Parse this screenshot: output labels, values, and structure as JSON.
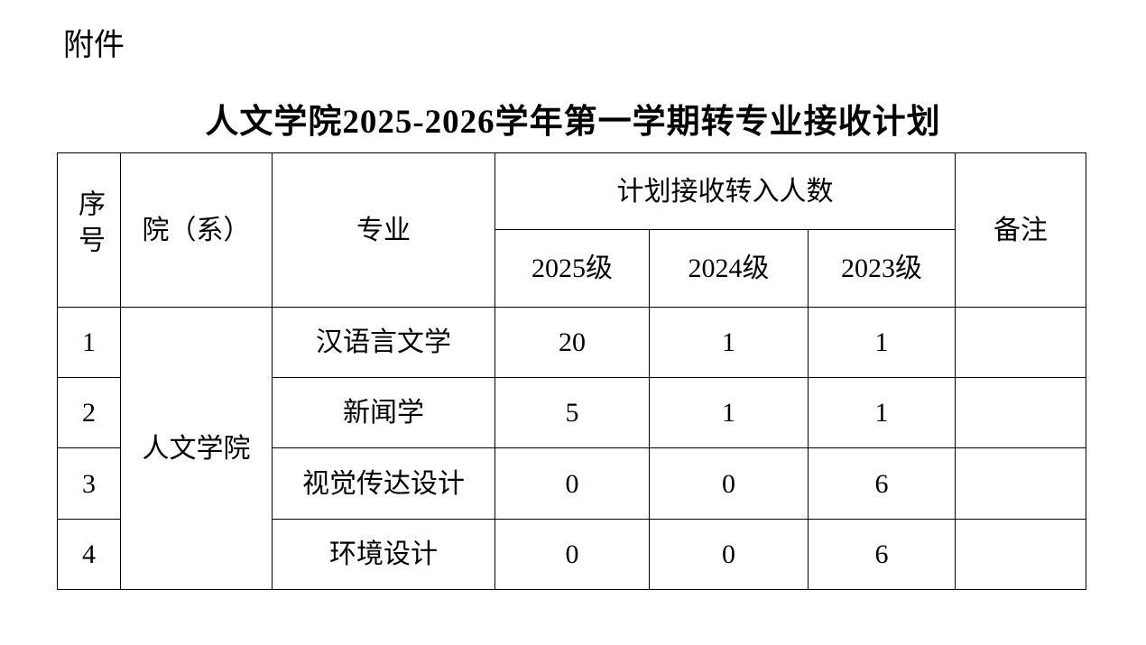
{
  "attachment_label": "附件",
  "title": "人文学院2025-2026学年第一学期转专业接收计划",
  "headers": {
    "index": "序号",
    "college": "院（系）",
    "major": "专业",
    "plan": "计划接收转入人数",
    "grades": [
      "2025级",
      "2024级",
      "2023级"
    ],
    "remark": "备注"
  },
  "college_name": "人文学院",
  "rows": [
    {
      "index": "1",
      "major": "汉语言文学",
      "g2025": "20",
      "g2024": "1",
      "g2023": "1",
      "remark": ""
    },
    {
      "index": "2",
      "major": "新闻学",
      "g2025": "5",
      "g2024": "1",
      "g2023": "1",
      "remark": ""
    },
    {
      "index": "3",
      "major": "视觉传达设计",
      "g2025": "0",
      "g2024": "0",
      "g2023": "6",
      "remark": ""
    },
    {
      "index": "4",
      "major": "环境设计",
      "g2025": "0",
      "g2024": "0",
      "g2023": "6",
      "remark": ""
    }
  ]
}
